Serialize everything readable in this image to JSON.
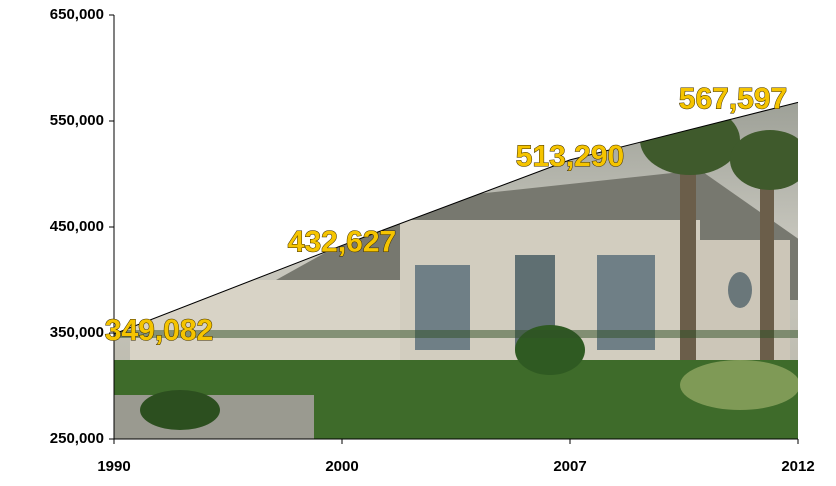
{
  "chart_data": {
    "type": "area",
    "categories": [
      "1990",
      "2000",
      "2007",
      "2012"
    ],
    "values": [
      349082,
      432627,
      513290,
      567597
    ],
    "value_labels": [
      "349,082",
      "432,627",
      "513,290",
      "567,597"
    ],
    "ylim": [
      250000,
      650000
    ],
    "yticks": [
      {
        "value": 250000,
        "label": "250,000"
      },
      {
        "value": 350000,
        "label": "350,000"
      },
      {
        "value": 450000,
        "label": "450,000"
      },
      {
        "value": 550000,
        "label": "550,000"
      },
      {
        "value": 650000,
        "label": "650,000"
      }
    ]
  }
}
